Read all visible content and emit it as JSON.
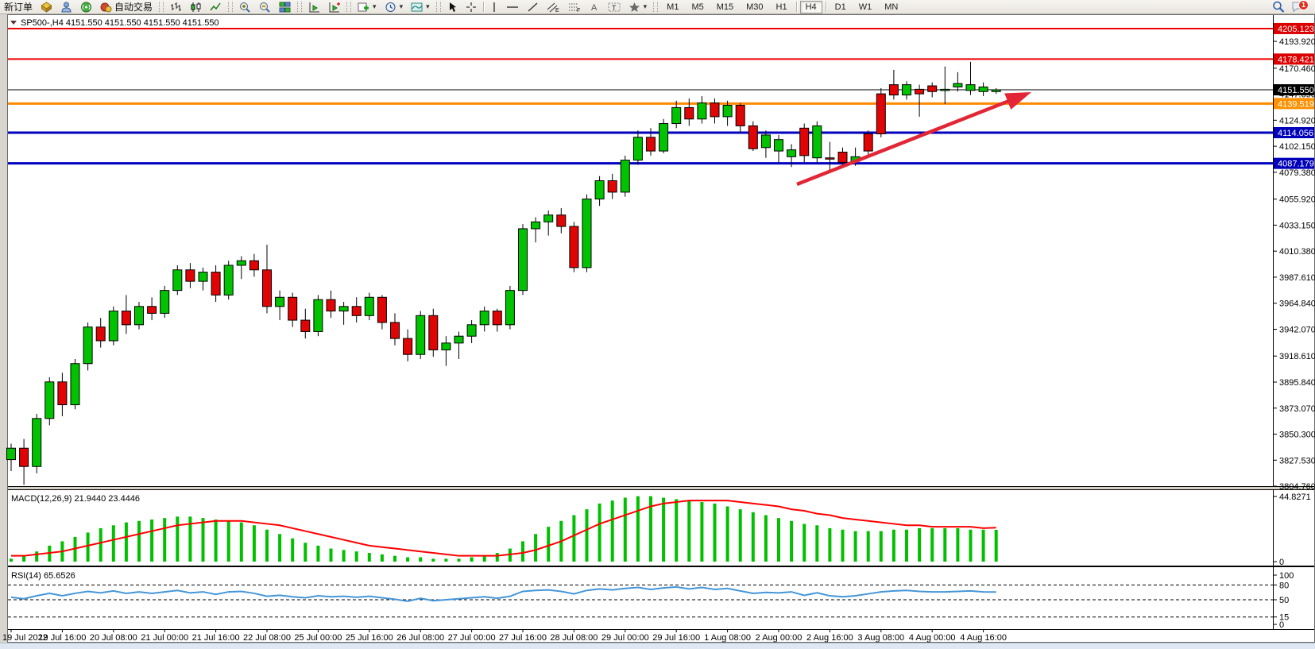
{
  "toolbar": {
    "new_order_label": "新订单",
    "auto_trade_label": "自动交易",
    "timeframes": [
      "M1",
      "M5",
      "M15",
      "M30",
      "H1",
      "H4",
      "D1",
      "W1",
      "MN"
    ],
    "active_timeframe": "H4",
    "notification_count": "1"
  },
  "chart": {
    "title": "SP500-,H4",
    "quotes": "4151.550 4151.550 4151.550 4151.550"
  },
  "chart_data": {
    "type": "candlestick",
    "symbol": "SP500-",
    "period": "H4",
    "title": "SP500-,H4 4151.550 4151.550 4151.550 4151.550",
    "ylim": [
      3804.8,
      4216.2
    ],
    "price_axis_ticks": [
      "4193.920",
      "4170.460",
      "4147.690",
      "4124.920",
      "4102.150",
      "4079.380",
      "4055.920",
      "4033.150",
      "4010.380",
      "3987.610",
      "3964.840",
      "3942.070",
      "3918.610",
      "3895.840",
      "3873.070",
      "3850.300",
      "3827.530",
      "3804.760"
    ],
    "price_badges": [
      {
        "value": "4205.123",
        "price": 4205.123,
        "color": "#dd0000"
      },
      {
        "value": "4178.421",
        "price": 4178.421,
        "color": "#dd0000"
      },
      {
        "value": "4151.550",
        "price": 4151.55,
        "color": "#000000"
      },
      {
        "value": "4139.519",
        "price": 4139.519,
        "color": "#ff9000"
      },
      {
        "value": "4114.056",
        "price": 4114.056,
        "color": "#0000bb"
      },
      {
        "value": "4087.179",
        "price": 4087.179,
        "color": "#0000bb"
      }
    ],
    "levels": [
      {
        "price": 4205.123,
        "color": "#ee0000",
        "width": 2
      },
      {
        "price": 4178.421,
        "color": "#ee0000",
        "width": 2
      },
      {
        "price": 4151.55,
        "color": "#000000",
        "width": 1
      },
      {
        "price": 4139.519,
        "color": "#ff8a00",
        "width": 3
      },
      {
        "price": 4114.056,
        "color": "#0000c0",
        "width": 3
      },
      {
        "price": 4087.179,
        "color": "#0000c0",
        "width": 3
      }
    ],
    "trend_arrow": {
      "from": [
        1003,
        232
      ],
      "to": [
        1298,
        116
      ],
      "color": "#e32636"
    },
    "time_labels": [
      "19 Jul 2022",
      "19 Jul 16:00",
      "20 Jul 08:00",
      "21 Jul 00:00",
      "21 Jul 16:00",
      "22 Jul 08:00",
      "25 Jul 00:00",
      "25 Jul 16:00",
      "26 Jul 08:00",
      "27 Jul 00:00",
      "27 Jul 16:00",
      "28 Jul 08:00",
      "29 Jul 00:00",
      "29 Jul 16:00",
      "1 Aug 08:00",
      "2 Aug 00:00",
      "2 Aug 16:00",
      "3 Aug 08:00",
      "4 Aug 00:00",
      "4 Aug 16:00"
    ],
    "ohlc": [
      [
        3828,
        3842,
        3818,
        3838
      ],
      [
        3838,
        3846,
        3806,
        3822
      ],
      [
        3822,
        3868,
        3816,
        3864
      ],
      [
        3864,
        3900,
        3858,
        3896
      ],
      [
        3896,
        3904,
        3866,
        3876
      ],
      [
        3876,
        3916,
        3872,
        3912
      ],
      [
        3912,
        3948,
        3906,
        3944
      ],
      [
        3944,
        3952,
        3926,
        3932
      ],
      [
        3932,
        3962,
        3928,
        3958
      ],
      [
        3958,
        3972,
        3938,
        3946
      ],
      [
        3946,
        3966,
        3942,
        3962
      ],
      [
        3962,
        3970,
        3950,
        3956
      ],
      [
        3956,
        3980,
        3952,
        3976
      ],
      [
        3976,
        3998,
        3972,
        3994
      ],
      [
        3994,
        4000,
        3978,
        3984
      ],
      [
        3984,
        3996,
        3976,
        3992
      ],
      [
        3992,
        3998,
        3966,
        3972
      ],
      [
        3972,
        4002,
        3968,
        3998
      ],
      [
        3998,
        4006,
        3986,
        4002
      ],
      [
        4002,
        4008,
        3988,
        3994
      ],
      [
        3994,
        4016,
        3956,
        3962
      ],
      [
        3962,
        3976,
        3950,
        3970
      ],
      [
        3970,
        3974,
        3944,
        3950
      ],
      [
        3950,
        3960,
        3934,
        3940
      ],
      [
        3940,
        3972,
        3936,
        3968
      ],
      [
        3968,
        3976,
        3952,
        3958
      ],
      [
        3958,
        3966,
        3946,
        3962
      ],
      [
        3962,
        3970,
        3948,
        3954
      ],
      [
        3954,
        3974,
        3950,
        3970
      ],
      [
        3970,
        3972,
        3942,
        3948
      ],
      [
        3948,
        3956,
        3928,
        3934
      ],
      [
        3934,
        3942,
        3914,
        3920
      ],
      [
        3920,
        3958,
        3916,
        3954
      ],
      [
        3954,
        3960,
        3918,
        3924
      ],
      [
        3924,
        3936,
        3910,
        3930
      ],
      [
        3930,
        3940,
        3916,
        3936
      ],
      [
        3936,
        3950,
        3930,
        3946
      ],
      [
        3946,
        3962,
        3940,
        3958
      ],
      [
        3958,
        3960,
        3940,
        3946
      ],
      [
        3946,
        3980,
        3942,
        3976
      ],
      [
        3976,
        4034,
        3972,
        4030
      ],
      [
        4030,
        4040,
        4018,
        4036
      ],
      [
        4036,
        4046,
        4024,
        4042
      ],
      [
        4042,
        4048,
        4026,
        4032
      ],
      [
        4032,
        4036,
        3992,
        3996
      ],
      [
        3996,
        4060,
        3992,
        4056
      ],
      [
        4056,
        4076,
        4050,
        4072
      ],
      [
        4072,
        4078,
        4056,
        4062
      ],
      [
        4062,
        4094,
        4058,
        4090
      ],
      [
        4090,
        4116,
        4086,
        4110
      ],
      [
        4110,
        4118,
        4094,
        4098
      ],
      [
        4098,
        4126,
        4096,
        4122
      ],
      [
        4122,
        4142,
        4118,
        4136
      ],
      [
        4136,
        4144,
        4120,
        4126
      ],
      [
        4126,
        4146,
        4122,
        4140
      ],
      [
        4140,
        4144,
        4122,
        4128
      ],
      [
        4128,
        4142,
        4120,
        4138
      ],
      [
        4138,
        4140,
        4114,
        4120
      ],
      [
        4120,
        4124,
        4098,
        4100
      ],
      [
        4101,
        4116,
        4092,
        4112
      ],
      [
        4098,
        4112,
        4088,
        4108
      ],
      [
        4093,
        4104,
        4084,
        4099
      ],
      [
        4118,
        4122,
        4088,
        4094
      ],
      [
        4092,
        4124,
        4088,
        4120
      ],
      [
        4092,
        4106,
        4081,
        4091
      ],
      [
        4097,
        4101,
        4084,
        4088
      ],
      [
        4089,
        4101,
        4085,
        4093
      ],
      [
        4113,
        4116,
        4094,
        4098
      ],
      [
        4148,
        4153,
        4110,
        4113
      ],
      [
        4156,
        4169,
        4143,
        4147
      ],
      [
        4147,
        4159,
        4143,
        4156
      ],
      [
        4152,
        4156,
        4128,
        4148
      ],
      [
        4155,
        4158,
        4145,
        4150
      ],
      [
        4151,
        4172,
        4139,
        4152
      ],
      [
        4154,
        4167,
        4150,
        4157
      ],
      [
        4151,
        4176,
        4147,
        4156
      ],
      [
        4150,
        4158,
        4146,
        4154
      ],
      [
        4150,
        4153,
        4148,
        4151.55
      ]
    ],
    "macd": {
      "label": "MACD(12,26,9) 21.9440 23.4446",
      "axis_max": "44.8271",
      "axis_zero": "0",
      "hist": [
        2,
        4,
        7,
        11,
        14,
        17,
        20,
        23,
        25,
        27,
        28,
        29,
        30,
        31,
        31,
        30,
        29,
        28,
        27,
        25,
        22,
        19,
        16,
        13,
        11,
        9,
        8,
        7,
        6,
        5,
        4,
        3,
        3,
        2,
        2,
        2,
        3,
        4,
        6,
        9,
        14,
        19,
        24,
        28,
        32,
        36,
        40,
        42,
        44,
        45,
        45,
        44,
        43,
        42,
        41,
        40,
        38,
        36,
        34,
        32,
        30,
        28,
        26,
        25,
        23,
        22,
        21,
        21,
        21,
        22,
        22,
        23,
        23,
        23,
        23,
        22,
        22,
        21.9
      ],
      "signal": [
        4,
        4,
        5,
        6,
        7,
        9,
        11,
        13,
        15,
        17,
        19,
        21,
        23,
        25,
        26,
        27,
        28,
        28,
        28,
        27,
        26,
        25,
        23,
        21,
        19,
        17,
        15,
        13,
        11,
        10,
        9,
        8,
        7,
        6,
        5,
        4,
        4,
        4,
        4,
        5,
        6,
        8,
        11,
        14,
        18,
        22,
        26,
        29,
        32,
        35,
        38,
        40,
        41,
        42,
        42,
        42,
        42,
        41,
        40,
        39,
        38,
        36,
        35,
        33,
        32,
        30,
        29,
        28,
        27,
        26,
        25,
        25,
        24,
        24,
        24,
        24,
        23,
        23.4
      ]
    },
    "rsi": {
      "label": "RSI(14) 65.6526",
      "axis_ticks": [
        "100",
        "80",
        "50",
        "15",
        "0"
      ],
      "level_values": [
        80,
        50,
        15
      ],
      "values": [
        55,
        52,
        58,
        63,
        58,
        63,
        67,
        64,
        68,
        63,
        66,
        63,
        66,
        69,
        64,
        66,
        61,
        66,
        67,
        63,
        57,
        59,
        56,
        54,
        58,
        56,
        57,
        55,
        57,
        54,
        51,
        47,
        53,
        48,
        50,
        52,
        54,
        56,
        53,
        57,
        67,
        69,
        70,
        67,
        62,
        69,
        72,
        70,
        73,
        75,
        71,
        74,
        76,
        72,
        75,
        71,
        73,
        68,
        63,
        65,
        64,
        66,
        59,
        64,
        58,
        56,
        58,
        62,
        66,
        68,
        69,
        67,
        66,
        66,
        67,
        68,
        66,
        65.65
      ]
    },
    "colors": {
      "bull": "#00c300",
      "bear": "#e00404",
      "wick": "#000000",
      "macd_hist": "#00c000",
      "macd_signal": "#ff0000",
      "rsi_line": "#4496d8"
    }
  }
}
